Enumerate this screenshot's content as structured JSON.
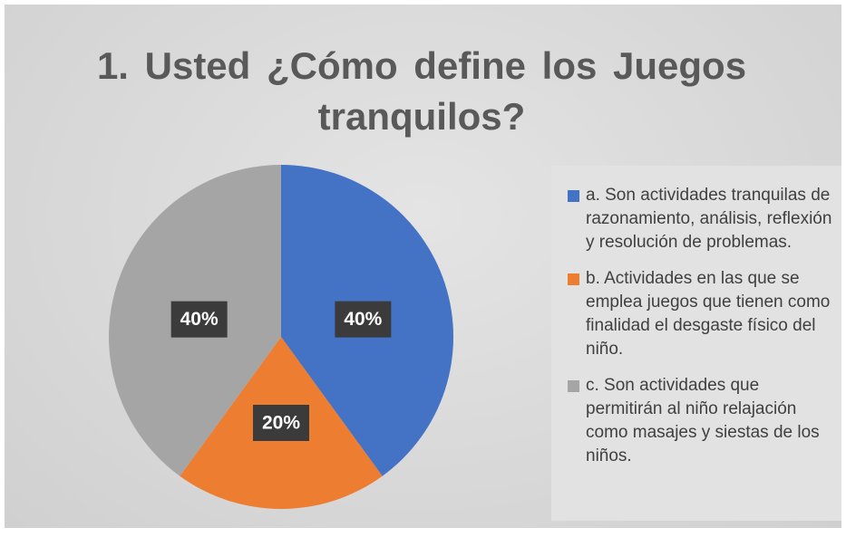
{
  "chart_data": {
    "type": "pie",
    "title": "1. Usted ¿Cómo define los Juegos tranquilos?",
    "categories": [
      "a. Son actividades tranquilas de razonamiento, análisis, reflexión y resolución de problemas.",
      "b. Actividades en las que se emplea juegos que tienen como finalidad el desgaste físico del niño.",
      "c. Son actividades que permitirán al niño relajación como masajes y siestas de los niños."
    ],
    "values": [
      40,
      20,
      40
    ],
    "value_labels": [
      "40%",
      "20%",
      "40%"
    ],
    "colors": [
      "#4472c4",
      "#ed7d31",
      "#a5a5a5"
    ],
    "legend": "right"
  }
}
